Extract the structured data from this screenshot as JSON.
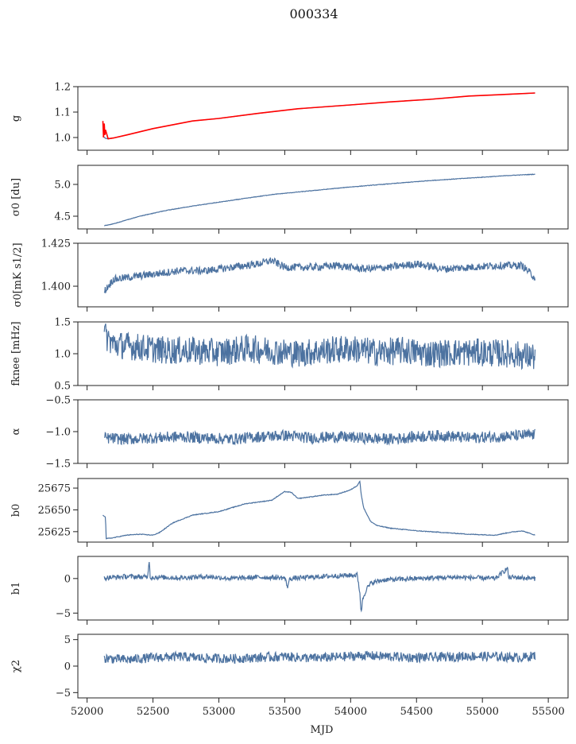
{
  "figure": {
    "title": "000334",
    "xlabel": "MJD",
    "xlim": [
      51930,
      55650
    ],
    "xticks": [
      52000,
      52500,
      53000,
      53500,
      54000,
      54500,
      55000,
      55500
    ],
    "xtick_labels": [
      "52000",
      "52500",
      "53000",
      "53500",
      "54000",
      "54500",
      "55000",
      "55500"
    ],
    "colors": {
      "line": "#4c72a0",
      "overlay": "#ff0000",
      "axis": "#222222"
    }
  },
  "chart_data": [
    {
      "type": "line",
      "ylabel": "g",
      "ylim": [
        0.95,
        1.2
      ],
      "yticks": [
        1.0,
        1.1,
        1.2
      ],
      "ytick_labels": [
        "1.0",
        "1.1",
        "1.2"
      ],
      "series": [
        {
          "x": [
            52120,
            52140,
            52160,
            52200,
            52300,
            52500,
            52800,
            53000,
            53300,
            53600,
            54000,
            54300,
            54600,
            54900,
            55200,
            55400
          ],
          "y": [
            1.005,
            0.997,
            0.995,
            0.998,
            1.01,
            1.035,
            1.065,
            1.075,
            1.095,
            1.113,
            1.128,
            1.14,
            1.15,
            1.163,
            1.17,
            1.175
          ]
        },
        {
          "x": [
            52120,
            52125,
            52130,
            52135,
            52140,
            52160,
            52200,
            52300,
            52500,
            52800,
            53000,
            53300,
            53600,
            54000,
            54300,
            54600,
            54900,
            55200,
            55400
          ],
          "y": [
            1.065,
            1.0,
            1.055,
            1.01,
            1.03,
            0.995,
            0.998,
            1.01,
            1.035,
            1.065,
            1.075,
            1.095,
            1.113,
            1.128,
            1.14,
            1.15,
            1.163,
            1.17,
            1.175
          ]
        }
      ]
    },
    {
      "type": "line",
      "ylabel": "σ0 [du]",
      "ylim": [
        4.3,
        5.3
      ],
      "yticks": [
        4.5,
        5.0
      ],
      "ytick_labels": [
        "4.5",
        "5.0"
      ],
      "series": [
        {
          "x": [
            52130,
            52200,
            52400,
            52600,
            52800,
            53000,
            53200,
            53400,
            53600,
            53800,
            54000,
            54300,
            54600,
            54900,
            55200,
            55400
          ],
          "y": [
            4.35,
            4.38,
            4.5,
            4.59,
            4.66,
            4.72,
            4.78,
            4.84,
            4.88,
            4.92,
            4.96,
            5.01,
            5.06,
            5.1,
            5.14,
            5.16
          ]
        }
      ]
    },
    {
      "type": "line",
      "ylabel": "σ0[mK s1/2]",
      "ylim": [
        1.388,
        1.425
      ],
      "yticks": [
        1.4,
        1.425
      ],
      "ytick_labels": [
        "1.400",
        "1.425"
      ],
      "series": [
        {
          "x": [
            52130,
            52150,
            52200,
            52300,
            52400,
            52500,
            52700,
            52900,
            53100,
            53300,
            53400,
            53500,
            53700,
            53900,
            54100,
            54300,
            54500,
            54700,
            54900,
            55100,
            55300,
            55400
          ],
          "y": [
            1.397,
            1.399,
            1.404,
            1.405,
            1.406,
            1.407,
            1.409,
            1.409,
            1.411,
            1.413,
            1.415,
            1.411,
            1.411,
            1.412,
            1.41,
            1.411,
            1.413,
            1.41,
            1.411,
            1.412,
            1.412,
            1.405
          ]
        }
      ]
    },
    {
      "type": "line",
      "ylabel": "fknee [mHz]",
      "ylim": [
        0.5,
        1.5
      ],
      "yticks": [
        0.5,
        1.0,
        1.5
      ],
      "ytick_labels": [
        "0.5",
        "1.0",
        "1.5"
      ],
      "series": [
        {
          "x": [
            52130,
            52200,
            52400,
            52600,
            52800,
            53000,
            53200,
            53400,
            53600,
            53800,
            54000,
            54200,
            54400,
            54600,
            54800,
            55000,
            55200,
            55400
          ],
          "y": [
            1.3,
            1.15,
            1.1,
            1.05,
            1.05,
            1.02,
            1.08,
            1.05,
            1.0,
            1.05,
            1.08,
            1.02,
            1.05,
            1.0,
            1.02,
            1.02,
            1.0,
            0.95
          ]
        }
      ]
    },
    {
      "type": "line",
      "ylabel": "α",
      "ylim": [
        -1.5,
        -0.5
      ],
      "yticks": [
        -1.5,
        -1.0,
        -0.5
      ],
      "ytick_labels": [
        "−1.5",
        "−1.0",
        "−0.5"
      ],
      "series": [
        {
          "x": [
            52130,
            52300,
            52500,
            52700,
            52900,
            53100,
            53300,
            53500,
            53700,
            53900,
            54100,
            54300,
            54500,
            54700,
            54900,
            55100,
            55300,
            55400
          ],
          "y": [
            -1.1,
            -1.12,
            -1.1,
            -1.08,
            -1.1,
            -1.12,
            -1.08,
            -1.06,
            -1.1,
            -1.08,
            -1.1,
            -1.12,
            -1.08,
            -1.06,
            -1.1,
            -1.08,
            -1.06,
            -1.05
          ]
        }
      ]
    },
    {
      "type": "line",
      "ylabel": "b0",
      "ylim": [
        25613,
        25686
      ],
      "yticks": [
        25625,
        25650,
        25675
      ],
      "ytick_labels": [
        "25625",
        "25650",
        "25675"
      ],
      "series": [
        {
          "x": [
            52120,
            52140,
            52145,
            52200,
            52300,
            52400,
            52500,
            52550,
            52650,
            52800,
            53000,
            53200,
            53400,
            53500,
            53550,
            53600,
            53700,
            53800,
            53900,
            54000,
            54050,
            54070,
            54080,
            54100,
            54150,
            54200,
            54300,
            54500,
            54700,
            54900,
            55100,
            55200,
            55300,
            55400
          ],
          "y": [
            25644,
            25642,
            25617,
            25618,
            25621,
            25622,
            25621,
            25624,
            25635,
            25644,
            25648,
            25657,
            25661,
            25671,
            25670,
            25663,
            25665,
            25667,
            25668,
            25673,
            25678,
            25683,
            25668,
            25652,
            25637,
            25632,
            25629,
            25626,
            25624,
            25622,
            25621,
            25624,
            25626,
            25621
          ]
        }
      ]
    },
    {
      "type": "line",
      "ylabel": "b1",
      "ylim": [
        -6,
        3.2
      ],
      "yticks": [
        -5,
        0
      ],
      "ytick_labels": [
        "−5",
        "0"
      ],
      "series": [
        {
          "x": [
            52130,
            52300,
            52460,
            52470,
            52480,
            52500,
            52700,
            52900,
            53100,
            53300,
            53500,
            53520,
            53540,
            53700,
            53900,
            54050,
            54070,
            54080,
            54090,
            54120,
            54160,
            54250,
            54500,
            54800,
            55100,
            55190,
            55200,
            55210,
            55400
          ],
          "y": [
            0.1,
            0.3,
            0.2,
            2.8,
            0.1,
            0.2,
            0.1,
            0.3,
            0.0,
            0.2,
            0.1,
            -1.2,
            0.0,
            0.2,
            0.4,
            0.5,
            -2.0,
            -5.2,
            -3.0,
            -1.5,
            -0.6,
            -0.2,
            0.0,
            0.2,
            0.0,
            1.5,
            0.0,
            0.2,
            0.0
          ]
        }
      ]
    },
    {
      "type": "line",
      "ylabel": "χ2",
      "ylim": [
        -6,
        6
      ],
      "yticks": [
        -5,
        0,
        5
      ],
      "ytick_labels": [
        "−5",
        "0",
        "5"
      ],
      "series": [
        {
          "x": [
            52130,
            52300,
            52500,
            52700,
            52900,
            53100,
            53300,
            53500,
            53700,
            53900,
            54100,
            54300,
            54500,
            54700,
            54900,
            55100,
            55300,
            55400
          ],
          "y": [
            1.5,
            1.2,
            1.6,
            1.8,
            1.5,
            1.4,
            1.6,
            1.8,
            1.5,
            1.7,
            2.0,
            1.8,
            1.6,
            1.7,
            1.9,
            1.8,
            1.6,
            2.0
          ]
        }
      ]
    }
  ]
}
